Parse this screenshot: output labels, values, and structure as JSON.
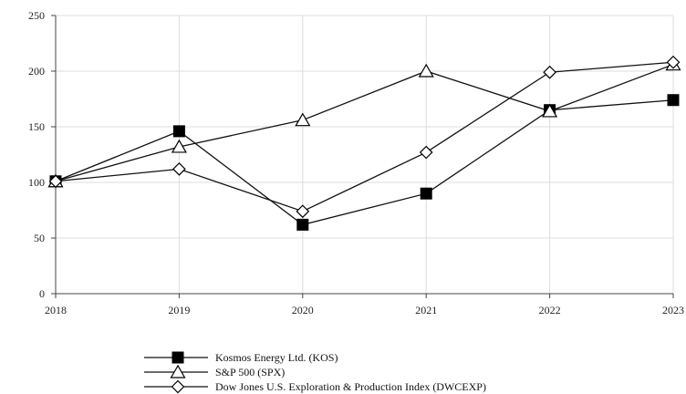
{
  "chart_data": {
    "type": "line",
    "x": [
      "2018",
      "2019",
      "2020",
      "2021",
      "2022",
      "2023"
    ],
    "ylim": [
      0,
      250
    ],
    "yticks": [
      0,
      50,
      100,
      150,
      200,
      250
    ],
    "grid": "horizontal",
    "legend_position": "bottom-center",
    "series": [
      {
        "name": "Kosmos Energy Ltd. (KOS)",
        "marker": "square",
        "values": [
          101,
          146,
          62,
          90,
          165,
          174
        ]
      },
      {
        "name": "S&P 500 (SPX)",
        "marker": "triangle",
        "values": [
          101,
          132,
          156,
          200,
          164,
          206
        ]
      },
      {
        "name": "Dow Jones U.S. Exploration & Production Index (DWCEXP)",
        "marker": "diamond",
        "values": [
          101,
          112,
          74,
          127,
          199,
          208
        ]
      }
    ]
  }
}
